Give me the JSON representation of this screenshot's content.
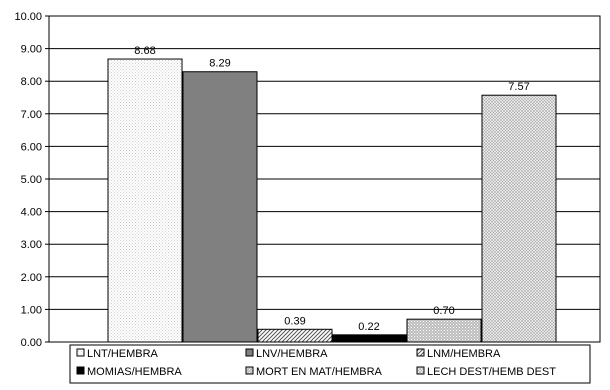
{
  "chart_data": {
    "type": "bar",
    "title": "",
    "xlabel": "",
    "ylabel": "",
    "ylim": [
      0,
      10
    ],
    "ytick_step": 1,
    "ytick_labels": [
      "0.00",
      "1.00",
      "2.00",
      "3.00",
      "4.00",
      "5.00",
      "6.00",
      "7.00",
      "8.00",
      "9.00",
      "10.00"
    ],
    "grid": true,
    "legend_position": "bottom",
    "series": [
      {
        "name": "LNT/HEMBRA",
        "value": 8.68,
        "label": "8.68",
        "fill": "#ffffff",
        "pattern": "dots"
      },
      {
        "name": "LNV/HEMBRA",
        "value": 8.29,
        "label": "8.29",
        "fill": "#808080",
        "pattern": "solid"
      },
      {
        "name": "LNM/HEMBRA",
        "value": 0.39,
        "label": "0.39",
        "fill": "#ffffff",
        "pattern": "diagonal"
      },
      {
        "name": "MOMIAS/HEMBRA",
        "value": 0.22,
        "label": "0.22",
        "fill": "#000000",
        "pattern": "solid"
      },
      {
        "name": "MORT EN MAT/HEMBRA",
        "value": 0.7,
        "label": "0.70",
        "fill": "#d9d9d9",
        "pattern": "dots"
      },
      {
        "name": "LECH DEST/HEMB DEST",
        "value": 7.57,
        "label": "7.57",
        "fill": "#f2f2f2",
        "pattern": "crosshatch"
      }
    ]
  }
}
